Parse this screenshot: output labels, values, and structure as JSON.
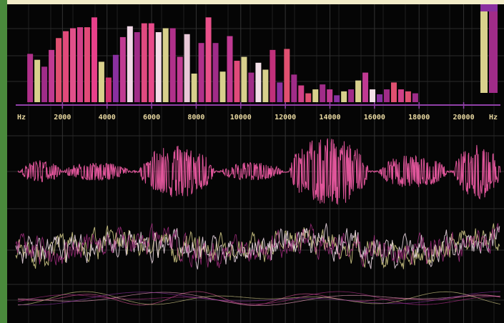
{
  "chart_data": {
    "type": "bar",
    "x_label": "Hz",
    "x": [
      550,
      870,
      1190,
      1510,
      1830,
      2150,
      2470,
      2790,
      3110,
      3430,
      3750,
      4070,
      4390,
      4710,
      5030,
      5350,
      5670,
      5990,
      6310,
      6630,
      6950,
      7270,
      7590,
      7910,
      8230,
      8550,
      8870,
      9190,
      9510,
      9830,
      10150,
      10470,
      10790,
      11110,
      11430,
      11750,
      12070,
      12390,
      12710,
      13030,
      13350,
      13670,
      13990,
      14310,
      14630,
      14950,
      15270,
      15590,
      15910,
      16230,
      16550,
      16870,
      17190,
      17510,
      17830
    ],
    "values": [
      49,
      43,
      36,
      53,
      65,
      72,
      75,
      76,
      76,
      86,
      41,
      25,
      48,
      66,
      77,
      71,
      80,
      80,
      71,
      75,
      75,
      46,
      69,
      29,
      60,
      86,
      60,
      31,
      67,
      42,
      46,
      30,
      40,
      33,
      53,
      20,
      54,
      28,
      17,
      9,
      13,
      18,
      13,
      7,
      11,
      13,
      22,
      30,
      13,
      8,
      13,
      20,
      13,
      11,
      9
    ],
    "colors": [
      "#b0308a",
      "#d8d08c",
      "#a02c88",
      "#c03a92",
      "#e05070",
      "#e04a7a",
      "#e0508a",
      "#d04088",
      "#e04a78",
      "#e8408a",
      "#d8d08c",
      "#d03070",
      "#8a30a0",
      "#c03a92",
      "#f2d8e8",
      "#a02c88",
      "#e04a80",
      "#e84a8a",
      "#f4dce8",
      "#d8d08c",
      "#b0308a",
      "#c03a92",
      "#e8c8d8",
      "#d8d08c",
      "#b0308a",
      "#e8508a",
      "#a02c88",
      "#d8d08c",
      "#c03a92",
      "#e04a7a",
      "#d8d08c",
      "#a02c88",
      "#f2e0e8",
      "#d8d08c",
      "#c0307a",
      "#8a30a0",
      "#e05070",
      "#a02c88",
      "#d04088",
      "#e05070",
      "#d8d08c",
      "#a02c88",
      "#c03a92",
      "#8a30a0",
      "#d8d08c",
      "#a02c88",
      "#d8d08c",
      "#c03a92",
      "#f2e0e8",
      "#8a30a0",
      "#a02c88",
      "#e05070",
      "#d04088",
      "#e05070",
      "#a02c88"
    ],
    "xlim": [
      0,
      21650
    ],
    "xticks": [
      2000,
      4000,
      6000,
      8000,
      10000,
      12000,
      14000,
      16000,
      18000,
      20000
    ],
    "ylim": [
      0,
      100
    ],
    "grid": true
  }
}
